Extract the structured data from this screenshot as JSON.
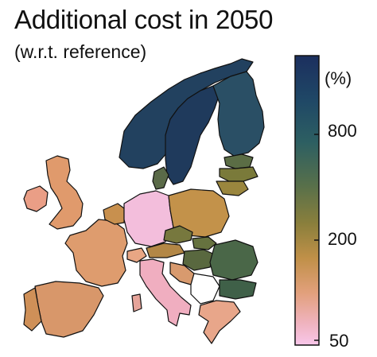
{
  "title": "Additional cost in 2050",
  "subtitle": "(w.r.t. reference)",
  "colorbar": {
    "unit": "(%)",
    "ticks": [
      "800",
      "200",
      "50"
    ],
    "colors": [
      "#1c3560",
      "#2e5a62",
      "#4e6f4c",
      "#7f7d3c",
      "#b88f4a",
      "#e0a37a",
      "#f3b8c8",
      "#f7c3e6"
    ]
  },
  "legend_scale": "log"
}
